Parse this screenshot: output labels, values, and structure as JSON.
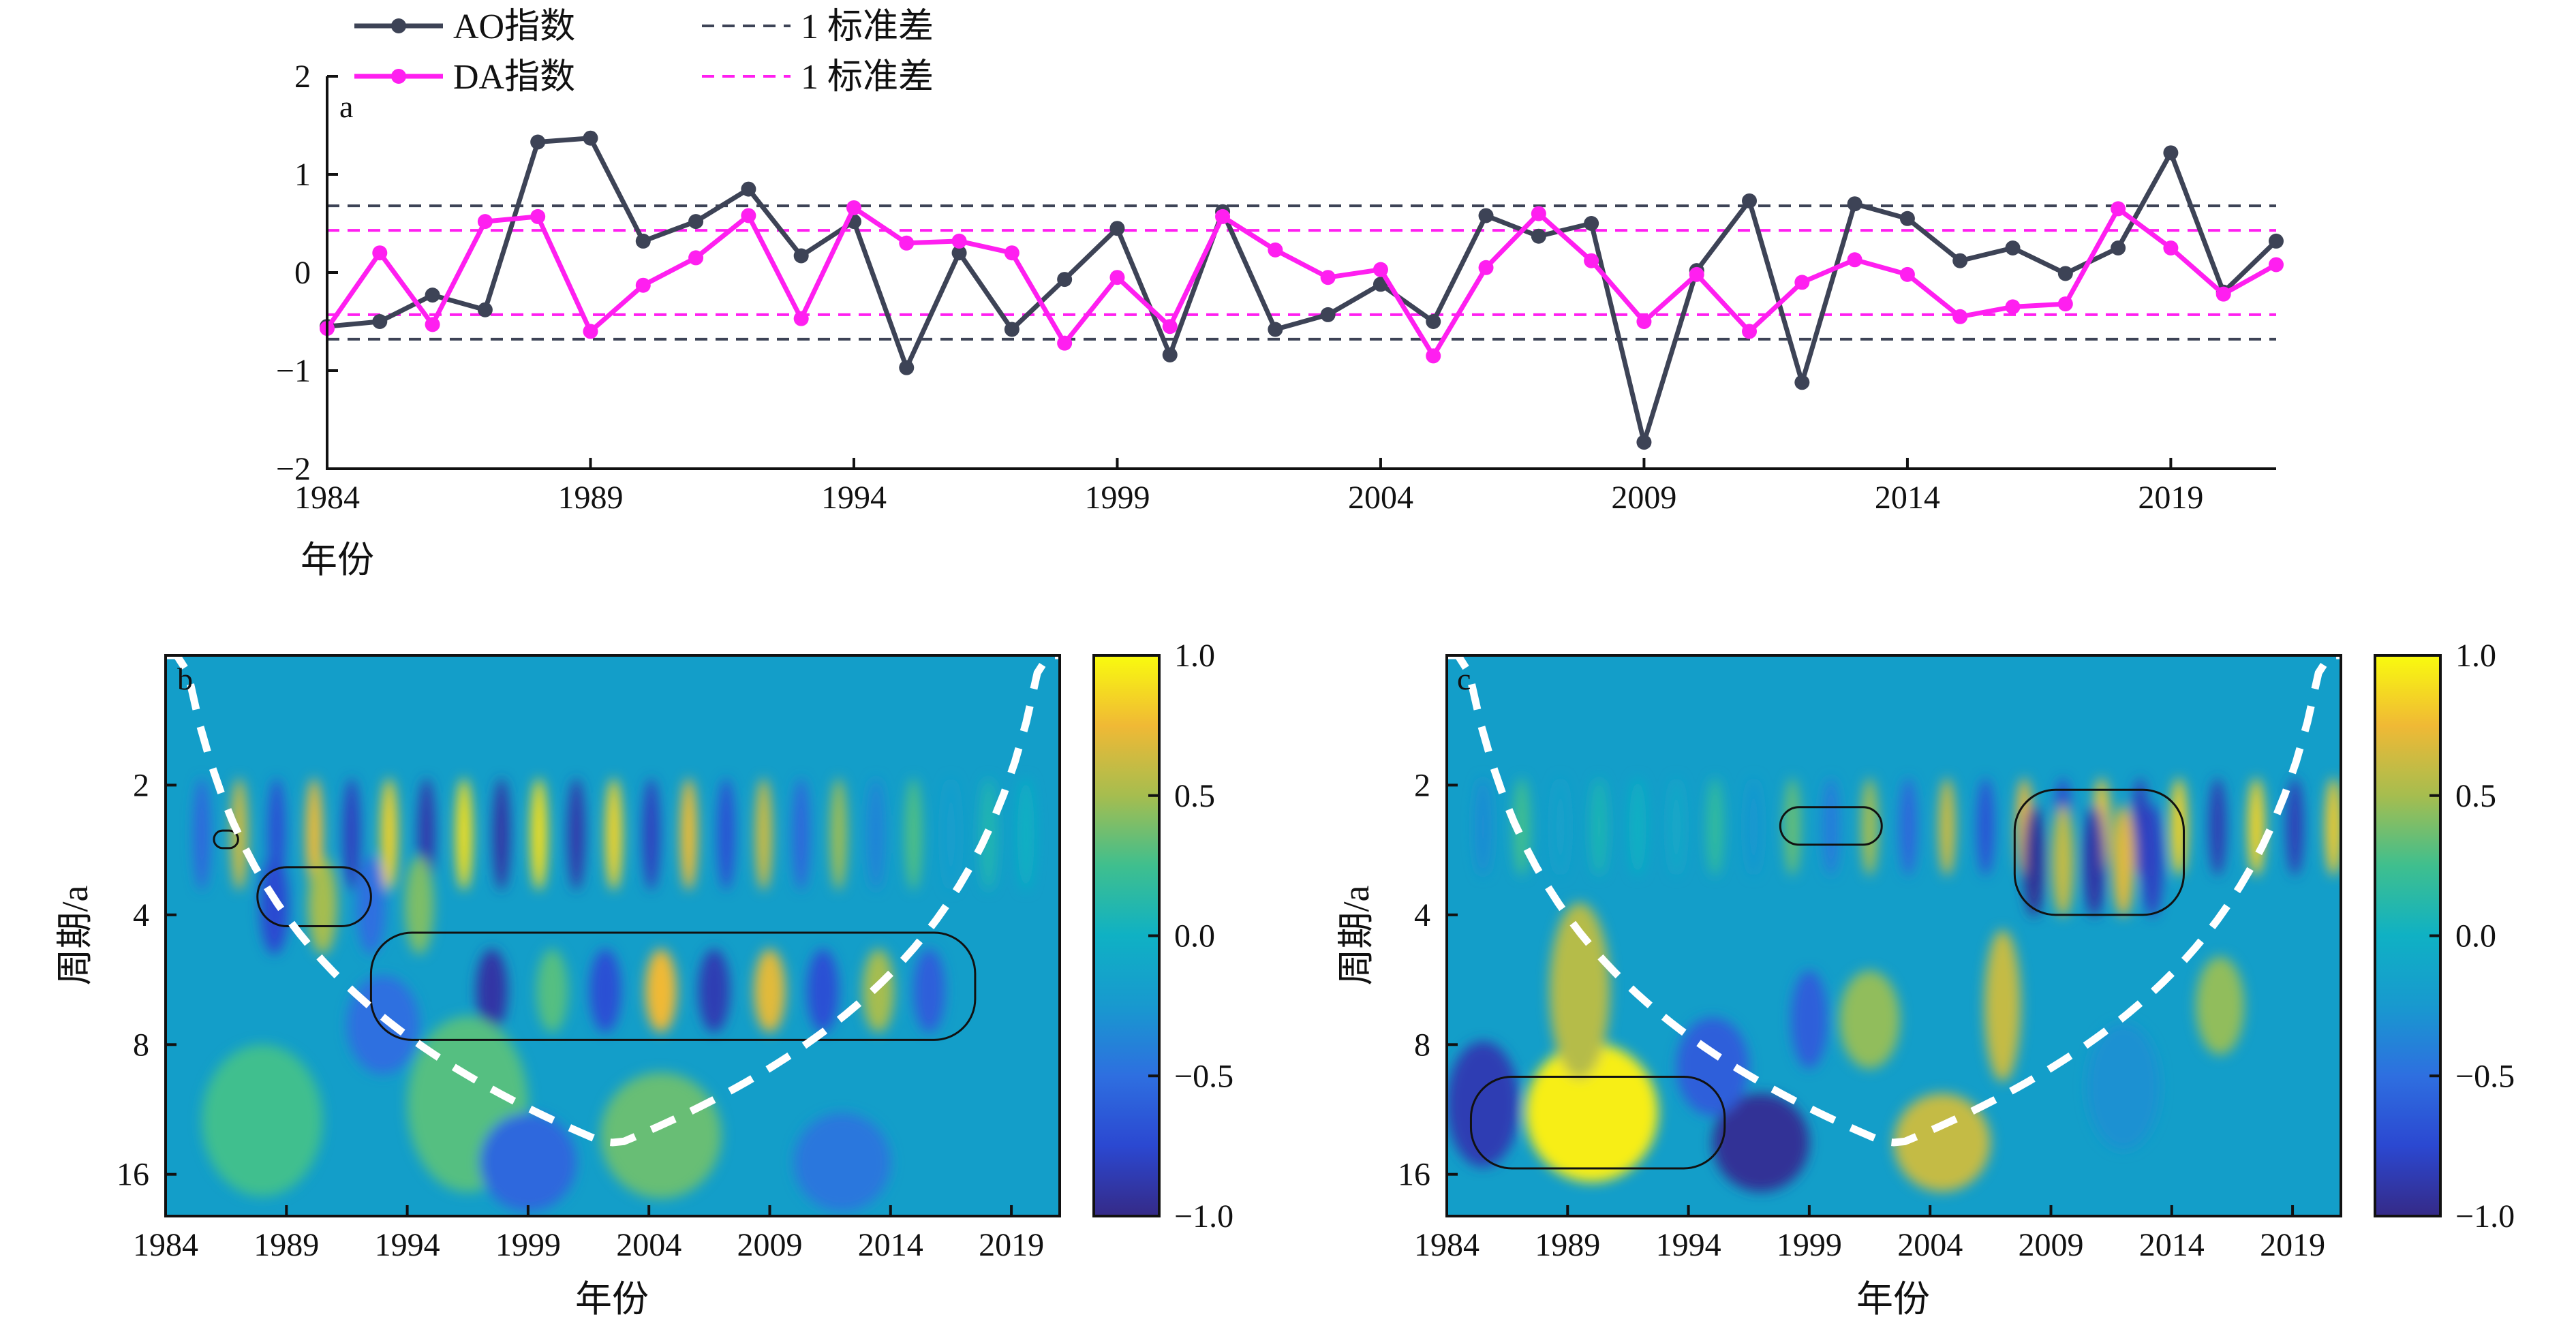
{
  "chart_data": [
    {
      "panel": "a",
      "type": "line",
      "xlabel": "年份",
      "ylabel": "",
      "xlim": [
        1984,
        2021
      ],
      "ylim": [
        -2,
        2
      ],
      "xticks": [
        1984,
        1989,
        1994,
        1999,
        2004,
        2009,
        2014,
        2019
      ],
      "yticks": [
        -2,
        -1,
        0,
        1,
        2
      ],
      "legend_position": "top-left",
      "legend": [
        "AO指数",
        "1 标准差",
        "DA指数",
        "1 标准差"
      ],
      "x": [
        1984,
        1985,
        1986,
        1987,
        1988,
        1989,
        1990,
        1991,
        1992,
        1993,
        1994,
        1995,
        1996,
        1997,
        1998,
        1999,
        2000,
        2001,
        2002,
        2003,
        2004,
        2005,
        2006,
        2007,
        2008,
        2009,
        2010,
        2011,
        2012,
        2013,
        2014,
        2015,
        2016,
        2017,
        2018,
        2019,
        2020,
        2021
      ],
      "series": [
        {
          "name": "AO指数",
          "color": "#3d4356",
          "values": [
            -0.55,
            -0.5,
            -0.23,
            -0.38,
            1.33,
            1.37,
            0.32,
            0.52,
            0.85,
            0.17,
            0.52,
            -0.97,
            0.2,
            -0.58,
            -0.07,
            0.45,
            -0.84,
            0.62,
            -0.58,
            -0.43,
            -0.12,
            -0.5,
            0.58,
            0.37,
            0.5,
            -1.73,
            0.02,
            0.73,
            -1.12,
            0.7,
            0.55,
            0.12,
            0.25,
            -0.01,
            0.25,
            1.22,
            -0.2,
            0.32
          ]
        },
        {
          "name": "DA指数",
          "color": "#ff1ff0",
          "values": [
            -0.57,
            0.2,
            -0.53,
            0.52,
            0.57,
            -0.6,
            -0.13,
            0.15,
            0.58,
            -0.47,
            0.66,
            0.3,
            0.32,
            0.2,
            -0.72,
            -0.05,
            -0.55,
            0.57,
            0.23,
            -0.05,
            0.03,
            -0.85,
            0.05,
            0.6,
            0.12,
            -0.5,
            -0.02,
            -0.6,
            -0.1,
            0.13,
            -0.02,
            -0.45,
            -0.35,
            -0.32,
            0.65,
            0.25,
            -0.22,
            0.08
          ]
        }
      ],
      "reference_lines": [
        {
          "series": "AO指数",
          "values": [
            0.68,
            -0.68
          ],
          "color": "#3d4356",
          "style": "dashed"
        },
        {
          "series": "DA指数",
          "values": [
            0.43,
            -0.43
          ],
          "color": "#ff1ff0",
          "style": "dashed"
        }
      ]
    },
    {
      "panel": "b",
      "type": "heatmap",
      "xlabel": "年份",
      "ylabel": "周期/a",
      "xlim": [
        1984,
        2021
      ],
      "xticks": [
        1984,
        1989,
        1994,
        1999,
        2004,
        2009,
        2014,
        2019
      ],
      "yticks": [
        2,
        4,
        8,
        16
      ],
      "yscale": "log2",
      "ylim": [
        1,
        20
      ],
      "colorbar_ticks": [
        "1.0",
        "0.5",
        "0.0",
        "−0.5",
        "−1.0"
      ],
      "colorbar_range": [
        -1,
        1
      ],
      "colormap": "viridis-like parula",
      "cone_of_influence": "white dashed U curve",
      "significant_regions": [
        {
          "x_range": [
            1986,
            1987
          ],
          "period_range": [
            2.55,
            2.8
          ]
        },
        {
          "x_range": [
            1987.8,
            1992.5
          ],
          "period_range": [
            3.1,
            4.25
          ]
        },
        {
          "x_range": [
            1992.5,
            2017.5
          ],
          "period_range": [
            4.4,
            7.8
          ]
        }
      ],
      "dominant_features": [
        {
          "period": 6,
          "note": "alternating positive/negative bands 1997-2015"
        },
        {
          "period": 2.5,
          "note": "high-frequency oscillations throughout"
        }
      ]
    },
    {
      "panel": "c",
      "type": "heatmap",
      "xlabel": "年份",
      "ylabel": "周期/a",
      "xlim": [
        1984,
        2021
      ],
      "xticks": [
        1984,
        1989,
        1994,
        1999,
        2004,
        2009,
        2014,
        2019
      ],
      "yticks": [
        2,
        4,
        8,
        16
      ],
      "yscale": "log2",
      "ylim": [
        1,
        20
      ],
      "colorbar_ticks": [
        "1.0",
        "0.5",
        "0.0",
        "−0.5",
        "−1.0"
      ],
      "colorbar_range": [
        -1,
        1
      ],
      "colormap": "viridis-like parula",
      "cone_of_influence": "white dashed U curve",
      "significant_regions": [
        {
          "x_range": [
            1997.8,
            2002
          ],
          "period_range": [
            2.25,
            2.75
          ]
        },
        {
          "x_range": [
            2007.5,
            2014.5
          ],
          "period_range": [
            2.05,
            4.0
          ]
        },
        {
          "x_range": [
            1985,
            1995.5
          ],
          "period_range": [
            9.5,
            15.5
          ]
        }
      ],
      "dominant_features": [
        {
          "period": 12,
          "note": "strong positive around 1989-1992"
        },
        {
          "period": 14,
          "note": "strong negative around 1996-1998"
        },
        {
          "period": 3,
          "note": "strong alternating 2008-2013"
        }
      ]
    }
  ],
  "panel_labels": {
    "a": "a",
    "b": "b",
    "c": "c"
  }
}
